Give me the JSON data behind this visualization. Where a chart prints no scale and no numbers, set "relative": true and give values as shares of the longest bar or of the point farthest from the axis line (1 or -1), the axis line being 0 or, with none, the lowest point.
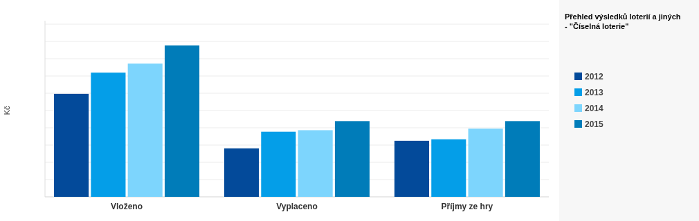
{
  "chart_data": {
    "type": "bar",
    "title": "Přehled výsledků loterií a jiných - \"Číselná loterie\"",
    "ylabel": "Kč",
    "categories": [
      "Vloženo",
      "Vyplaceno",
      "Příjmy ze hry"
    ],
    "relative": true,
    "grid": true,
    "legend": "right",
    "series": [
      {
        "name": "2012",
        "color": "#034a9a",
        "values": [
          0.68,
          0.32,
          0.37
        ]
      },
      {
        "name": "2013",
        "color": "#049ee8",
        "values": [
          0.82,
          0.43,
          0.38
        ]
      },
      {
        "name": "2014",
        "color": "#7dd5fd",
        "values": [
          0.88,
          0.44,
          0.45
        ]
      },
      {
        "name": "2015",
        "color": "#007cb9",
        "values": [
          1,
          0.5,
          0.5
        ]
      }
    ]
  }
}
